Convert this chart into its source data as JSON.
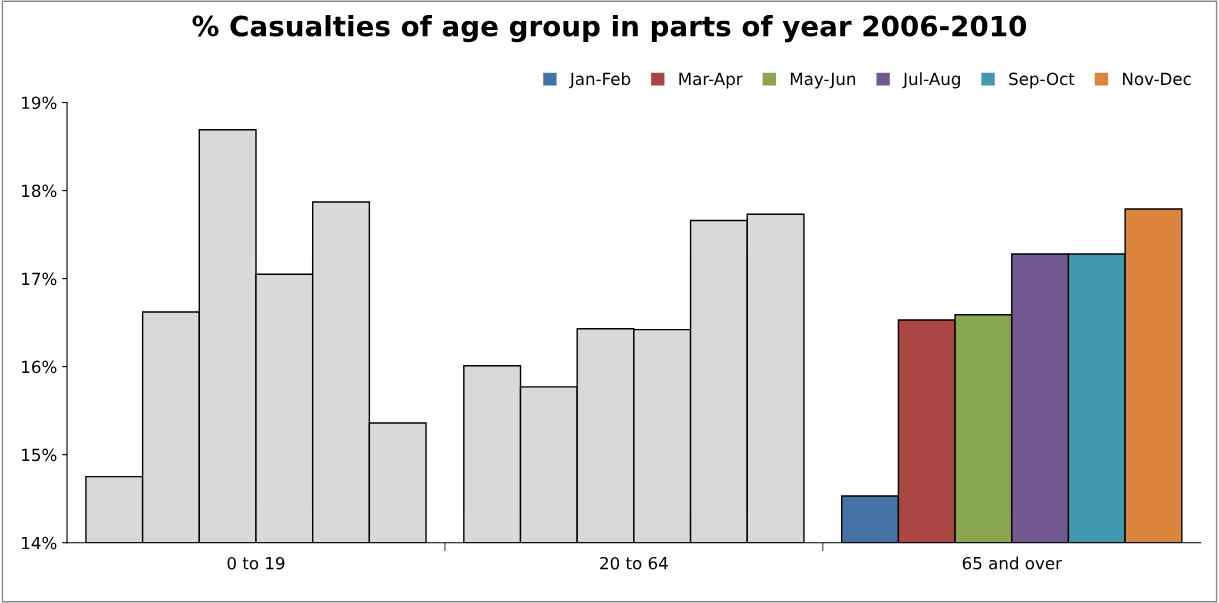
{
  "chart_data": {
    "type": "bar",
    "title": "% Casualties of age group in parts of year 2006-2010",
    "categories": [
      "0 to 19",
      "20 to 64",
      "65 and over"
    ],
    "series": [
      {
        "name": "Jan-Feb",
        "color": "#4572a7",
        "colors": [
          "#d9d9d9",
          "#d9d9d9",
          "#4572a7"
        ],
        "values": [
          14.75,
          16.01,
          14.53
        ]
      },
      {
        "name": "Mar-Apr",
        "color": "#aa4643",
        "colors": [
          "#d9d9d9",
          "#d9d9d9",
          "#aa4643"
        ],
        "values": [
          16.62,
          15.77,
          16.53
        ]
      },
      {
        "name": "May-Jun",
        "color": "#89a54e",
        "colors": [
          "#d9d9d9",
          "#d9d9d9",
          "#89a54e"
        ],
        "values": [
          18.69,
          16.43,
          16.59
        ]
      },
      {
        "name": "Jul-Aug",
        "color": "#71588f",
        "colors": [
          "#d9d9d9",
          "#d9d9d9",
          "#71588f"
        ],
        "values": [
          17.05,
          16.42,
          17.28
        ]
      },
      {
        "name": "Sep-Oct",
        "color": "#4198af",
        "colors": [
          "#d9d9d9",
          "#d9d9d9",
          "#4198af"
        ],
        "values": [
          17.87,
          17.66,
          17.28
        ]
      },
      {
        "name": "Nov-Dec",
        "color": "#db843d",
        "colors": [
          "#d9d9d9",
          "#d9d9d9",
          "#db843d"
        ],
        "values": [
          15.36,
          17.73,
          17.79
        ]
      }
    ],
    "ylim": [
      14,
      19
    ],
    "yticks": [
      {
        "value": 14,
        "label": "14%"
      },
      {
        "value": 15,
        "label": "15%"
      },
      {
        "value": 16,
        "label": "16%"
      },
      {
        "value": 17,
        "label": "17%"
      },
      {
        "value": 18,
        "label": "18%"
      },
      {
        "value": 19,
        "label": "19%"
      }
    ],
    "grid": false,
    "legend": "top right"
  }
}
